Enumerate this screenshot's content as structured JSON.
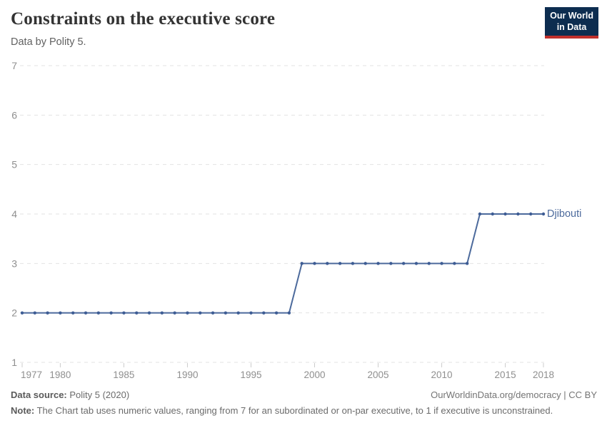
{
  "header": {
    "title": "Constraints on the executive score",
    "subtitle": "Data by Polity 5.",
    "logo": {
      "line1": "Our World",
      "line2": "in Data",
      "bg_color": "#0d2d50",
      "bar_color": "#c0302c"
    }
  },
  "chart_data": {
    "type": "line",
    "title": "Constraints on the executive score",
    "subtitle": "Data by Polity 5.",
    "x": [
      1977,
      1978,
      1979,
      1980,
      1981,
      1982,
      1983,
      1984,
      1985,
      1986,
      1987,
      1988,
      1989,
      1990,
      1991,
      1992,
      1993,
      1994,
      1995,
      1996,
      1997,
      1998,
      1999,
      2000,
      2001,
      2002,
      2003,
      2004,
      2005,
      2006,
      2007,
      2008,
      2009,
      2010,
      2011,
      2012,
      2013,
      2014,
      2015,
      2016,
      2017,
      2018
    ],
    "series": [
      {
        "name": "Djibouti",
        "color": "#4c6a9c",
        "values": [
          2,
          2,
          2,
          2,
          2,
          2,
          2,
          2,
          2,
          2,
          2,
          2,
          2,
          2,
          2,
          2,
          2,
          2,
          2,
          2,
          2,
          2,
          3,
          3,
          3,
          3,
          3,
          3,
          3,
          3,
          3,
          3,
          3,
          3,
          3,
          3,
          4,
          4,
          4,
          4,
          4,
          4
        ]
      }
    ],
    "xlabel": "",
    "ylabel": "",
    "xlim": [
      1977,
      2018
    ],
    "ylim": [
      1,
      7
    ],
    "x_ticks": [
      1977,
      1980,
      1985,
      1990,
      1995,
      2000,
      2005,
      2010,
      2015,
      2018
    ],
    "y_ticks": [
      1,
      2,
      3,
      4,
      5,
      6,
      7
    ],
    "grid": "horizontal-dashed",
    "grid_color": "#e3e3e3",
    "tick_label_color": "#8f8f8f",
    "legend_position": "end-of-line-label"
  },
  "footer": {
    "source_label": "Data source:",
    "source_value": " Polity 5 (2020)",
    "attribution": "OurWorldinData.org/democracy | CC BY",
    "note_label": "Note:",
    "note_value": " The Chart tab uses numeric values, ranging from 7 for an subordinated or on-par executive, to 1 if executive is unconstrained."
  }
}
